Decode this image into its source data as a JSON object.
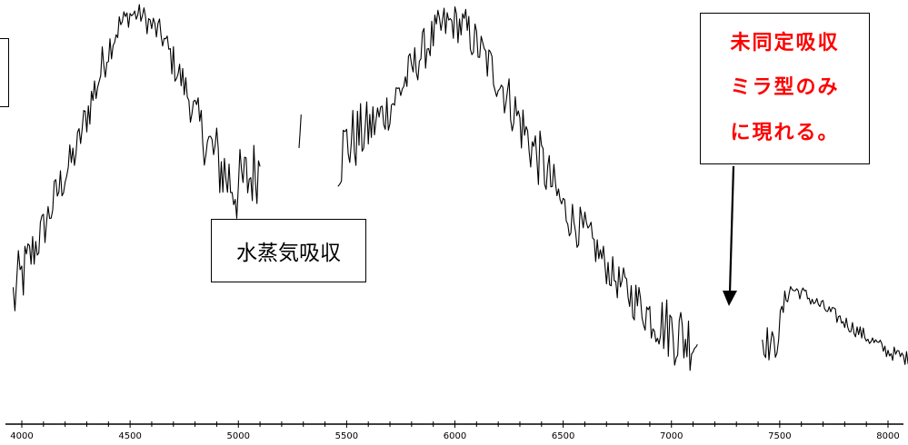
{
  "chart_data": {
    "type": "line",
    "title": "",
    "xlabel": "",
    "ylabel": "",
    "xlim": [
      3950,
      8300
    ],
    "ylim": [
      0,
      1
    ],
    "x_ticks": [
      4000,
      4500,
      5000,
      5500,
      6000,
      6500,
      7000,
      7500,
      8000
    ],
    "x_tick_labels": [
      "4000",
      "4500",
      "5000",
      "5500",
      "6000",
      "6500",
      "7000",
      "7500",
      "8000"
    ],
    "grid": false,
    "line_color": "#000000",
    "segments": [
      {
        "x": [
          3960,
          4000,
          4050,
          4100,
          4150,
          4200,
          4250,
          4300,
          4350,
          4400,
          4450,
          4500,
          4550,
          4600,
          4650,
          4700,
          4750,
          4800,
          4850,
          4900,
          4950,
          5000,
          5050,
          5100
        ],
        "y": [
          0.22,
          0.28,
          0.35,
          0.41,
          0.49,
          0.56,
          0.62,
          0.72,
          0.81,
          0.9,
          0.96,
          0.99,
          0.99,
          0.96,
          0.93,
          0.86,
          0.8,
          0.72,
          0.65,
          0.6,
          0.55,
          0.52,
          0.55,
          0.58
        ],
        "noise": [
          0.11,
          0.09,
          0.07,
          0.06,
          0.06,
          0.06,
          0.05,
          0.06,
          0.07,
          0.05,
          0.04,
          0.03,
          0.03,
          0.04,
          0.04,
          0.05,
          0.05,
          0.06,
          0.08,
          0.1,
          0.11,
          0.11,
          0.1,
          0.09
        ]
      },
      {
        "x": [
          5280,
          5290
        ],
        "y": [
          0.63,
          0.72
        ],
        "noise": [
          0.0,
          0.0
        ]
      },
      {
        "x": [
          5460,
          5500,
          5550,
          5600,
          5650,
          5700,
          5750,
          5800,
          5850,
          5900,
          5950,
          6000,
          6050,
          6100,
          6150,
          6200,
          6250,
          6300,
          6350,
          6400,
          6450,
          6500,
          6550,
          6600,
          6650,
          6700,
          6750,
          6800,
          6850,
          6900,
          6950,
          7000,
          7050,
          7100,
          7120
        ],
        "y": [
          0.6,
          0.64,
          0.66,
          0.68,
          0.71,
          0.74,
          0.79,
          0.84,
          0.89,
          0.93,
          0.96,
          0.97,
          0.95,
          0.91,
          0.86,
          0.82,
          0.76,
          0.7,
          0.64,
          0.59,
          0.53,
          0.47,
          0.43,
          0.4,
          0.36,
          0.31,
          0.27,
          0.24,
          0.21,
          0.18,
          0.16,
          0.14,
          0.12,
          0.11,
          0.1
        ],
        "noise": [
          0.1,
          0.1,
          0.09,
          0.08,
          0.07,
          0.06,
          0.06,
          0.06,
          0.06,
          0.06,
          0.06,
          0.05,
          0.06,
          0.06,
          0.06,
          0.07,
          0.07,
          0.08,
          0.08,
          0.08,
          0.07,
          0.06,
          0.06,
          0.06,
          0.05,
          0.05,
          0.05,
          0.06,
          0.06,
          0.07,
          0.08,
          0.09,
          0.1,
          0.08,
          0.06
        ]
      },
      {
        "x": [
          7420,
          7450,
          7480,
          7510,
          7530,
          7550,
          7600,
          7650,
          7700,
          7750,
          7800,
          7850,
          7900,
          7950,
          8000,
          8050,
          8100,
          8150,
          8200,
          8250,
          8280
        ],
        "y": [
          0.12,
          0.1,
          0.09,
          0.18,
          0.23,
          0.25,
          0.24,
          0.22,
          0.2,
          0.18,
          0.16,
          0.14,
          0.12,
          0.1,
          0.08,
          0.07,
          0.06,
          0.05,
          0.04,
          0.03,
          0.02
        ],
        "noise": [
          0.05,
          0.05,
          0.04,
          0.04,
          0.03,
          0.02,
          0.02,
          0.02,
          0.02,
          0.02,
          0.02,
          0.02,
          0.02,
          0.02,
          0.02,
          0.02,
          0.02,
          0.02,
          0.02,
          0.02,
          0.02
        ]
      }
    ],
    "annotations": [
      {
        "text": "水蒸気吸収"
      },
      {
        "lines": [
          "未同定吸収",
          "ミラ型のみ",
          "に現れる。"
        ],
        "color": "#ff0000"
      }
    ]
  }
}
